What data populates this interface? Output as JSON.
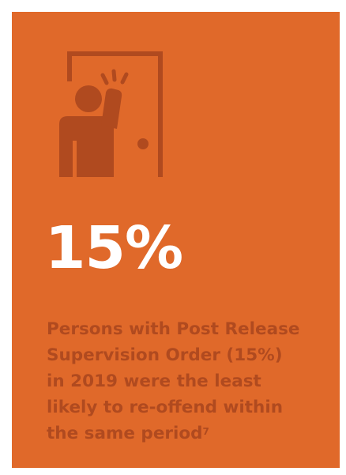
{
  "stat": {
    "value": "15%"
  },
  "description": {
    "lines": [
      "Persons with Post Release",
      "Supervision Order (15%)",
      "in 2019 were the least",
      "likely to re-offend within",
      "the same period"
    ],
    "footnote": "7"
  },
  "icon": {
    "name": "person-knocking-door-icon",
    "color": "#b04a1f"
  },
  "colors": {
    "background": "#e0692a",
    "stat_text": "#ffffff",
    "description_text": "#b04a1f"
  }
}
